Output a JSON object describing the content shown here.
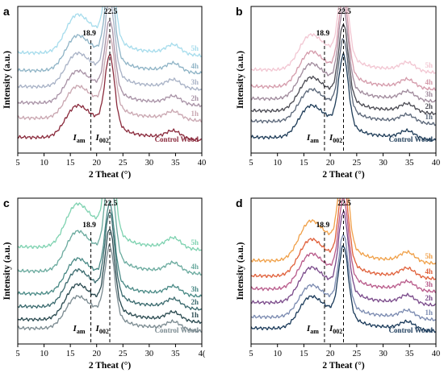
{
  "figure": {
    "x_axis_title": "2 Theat (°)",
    "y_axis_title": "Intensity (a.u.)",
    "iam_label": "I",
    "iam_sub": "am",
    "i002_label": "I",
    "i002_sub": "002"
  },
  "chart_data": [
    {
      "type": "line",
      "panel": "a",
      "x_ticks": [
        "5",
        "10",
        "15",
        "20",
        "25",
        "30",
        "35",
        "40"
      ],
      "xlim": [
        5,
        40
      ],
      "annotations": [
        "18.9",
        "22.5"
      ],
      "vlines": [
        18.9,
        22.5
      ],
      "grid": false,
      "series": [
        {
          "name": "Control Wood",
          "color": "#8a2a3c",
          "offset": 0
        },
        {
          "name": "1h",
          "color": "#c9a6b0",
          "offset": 1
        },
        {
          "name": "2h",
          "color": "#a892a6",
          "offset": 2
        },
        {
          "name": "3h",
          "color": "#a8b2c6",
          "offset": 3
        },
        {
          "name": "4h",
          "color": "#8fb4c6",
          "offset": 4
        },
        {
          "name": "5h",
          "color": "#a6dcec",
          "offset": 5
        }
      ]
    },
    {
      "type": "line",
      "panel": "b",
      "x_ticks": [
        "5",
        "10",
        "15",
        "20",
        "25",
        "30",
        "35",
        "40"
      ],
      "xlim": [
        5,
        40
      ],
      "annotations": [
        "18.9",
        "22.5"
      ],
      "vlines": [
        18.9,
        22.5
      ],
      "grid": false,
      "series": [
        {
          "name": "Control Wood",
          "color": "#1e3c58",
          "offset": 0
        },
        {
          "name": "1h",
          "color": "#5a6678",
          "offset": 1
        },
        {
          "name": "2h",
          "color": "#4a4a52",
          "offset": 2
        },
        {
          "name": "3h",
          "color": "#a08a9c",
          "offset": 3
        },
        {
          "name": "4h",
          "color": "#d49aaa",
          "offset": 4
        },
        {
          "name": "5h",
          "color": "#f2c6d2",
          "offset": 5
        }
      ]
    },
    {
      "type": "line",
      "panel": "c",
      "x_ticks": [
        "5",
        "10",
        "15",
        "20",
        "25",
        "30",
        "35",
        "4("
      ],
      "xlim": [
        5,
        40
      ],
      "annotations": [
        "18.9",
        "22.5"
      ],
      "vlines": [
        18.9,
        22.5
      ],
      "grid": false,
      "series": [
        {
          "name": "Control Wood",
          "color": "#7a8a90",
          "offset": 0
        },
        {
          "name": "1h",
          "color": "#2a4a50",
          "offset": 1
        },
        {
          "name": "2h",
          "color": "#3a6a6e",
          "offset": 2
        },
        {
          "name": "3h",
          "color": "#4a8a86",
          "offset": 3
        },
        {
          "name": "4h",
          "color": "#6aaa9e",
          "offset": 4
        },
        {
          "name": "5h",
          "color": "#7ed2b0",
          "offset": 5
        }
      ]
    },
    {
      "type": "line",
      "panel": "d",
      "x_ticks": [
        "5",
        "10",
        "15",
        "20",
        "25",
        "30",
        "35",
        "40"
      ],
      "xlim": [
        5,
        40
      ],
      "annotations": [
        "18.9",
        "22.5"
      ],
      "vlines": [
        18.9,
        22.5
      ],
      "grid": false,
      "series": [
        {
          "name": "Control Wood",
          "color": "#1a3a5a",
          "offset": 0
        },
        {
          "name": "1h",
          "color": "#7a8ab0",
          "offset": 1
        },
        {
          "name": "2h",
          "color": "#7a4a8a",
          "offset": 2
        },
        {
          "name": "3h",
          "color": "#b85a8a",
          "offset": 3
        },
        {
          "name": "4h",
          "color": "#e0603a",
          "offset": 4
        },
        {
          "name": "5h",
          "color": "#f0a048",
          "offset": 5
        }
      ]
    }
  ]
}
